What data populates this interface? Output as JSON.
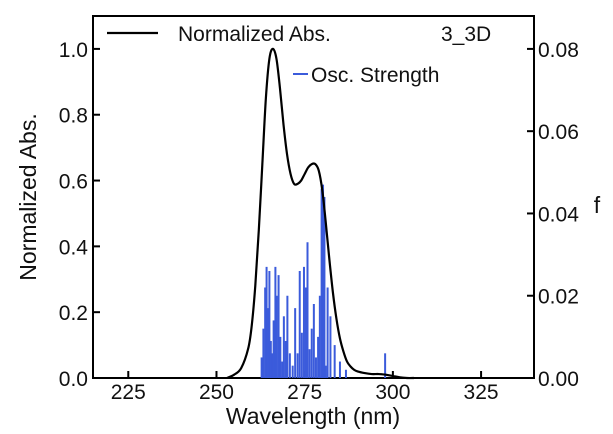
{
  "chart_data": {
    "type": "line",
    "annotation": "3_3D",
    "xlabel": "Wavelength (nm)",
    "ylabel": "Normalized Abs.",
    "y2label": "f",
    "xlim": [
      215,
      340
    ],
    "ylim": [
      0,
      1.1
    ],
    "y2lim": [
      0,
      0.088
    ],
    "xticks": [
      225,
      250,
      275,
      300,
      325
    ],
    "xtick_labels": [
      "225",
      "250",
      "275",
      "300",
      "325"
    ],
    "yticks": [
      0.0,
      0.2,
      0.4,
      0.6,
      0.8,
      1.0
    ],
    "ytick_labels": [
      "0.0",
      "0.2",
      "0.4",
      "0.6",
      "0.8",
      "1.0"
    ],
    "y2ticks": [
      0.0,
      0.02,
      0.04,
      0.06,
      0.08
    ],
    "y2tick_labels": [
      "0.00",
      "0.02",
      "0.04",
      "0.06",
      "0.08"
    ],
    "legend_position": "top",
    "series": [
      {
        "name": "Normalized Abs.",
        "axis": "left",
        "kind": "line",
        "color": "#000000",
        "x": [
          253,
          255,
          257,
          259,
          260,
          261,
          262,
          263,
          264,
          265,
          266,
          267,
          268,
          269,
          270,
          271,
          272,
          273,
          274,
          275,
          276,
          277,
          278,
          279,
          280,
          281,
          282,
          283,
          284,
          285,
          286,
          287,
          288,
          289,
          290,
          292,
          294,
          296,
          298,
          300,
          302,
          304,
          306
        ],
        "y": [
          0.0,
          0.01,
          0.03,
          0.09,
          0.16,
          0.28,
          0.45,
          0.65,
          0.85,
          0.97,
          1.0,
          0.97,
          0.88,
          0.77,
          0.68,
          0.62,
          0.59,
          0.59,
          0.6,
          0.62,
          0.64,
          0.65,
          0.65,
          0.63,
          0.57,
          0.47,
          0.36,
          0.26,
          0.18,
          0.12,
          0.08,
          0.05,
          0.035,
          0.025,
          0.02,
          0.015,
          0.012,
          0.012,
          0.01,
          0.006,
          0.002,
          0.0,
          0.0
        ]
      },
      {
        "name": "Osc. Strength",
        "axis": "right",
        "kind": "stick",
        "color": "#3b5bdb",
        "x": [
          262.8,
          263.3,
          263.8,
          264.2,
          264.6,
          265.0,
          265.4,
          265.8,
          266.2,
          266.7,
          267.1,
          267.6,
          268.1,
          268.6,
          269.1,
          269.6,
          270.1,
          270.8,
          271.6,
          272.3,
          273.0,
          273.6,
          274.2,
          274.8,
          275.3,
          275.8,
          276.4,
          277.0,
          277.6,
          278.2,
          278.8,
          279.3,
          279.8,
          280.2,
          280.6,
          281.0,
          281.5,
          282.3,
          283.5,
          285.0,
          286.7,
          297.8
        ],
        "y": [
          0.005,
          0.012,
          0.022,
          0.027,
          0.017,
          0.026,
          0.009,
          0.006,
          0.014,
          0.027,
          0.02,
          0.025,
          0.01,
          0.004,
          0.015,
          0.009,
          0.02,
          0.006,
          0.003,
          0.017,
          0.006,
          0.026,
          0.011,
          0.027,
          0.022,
          0.033,
          0.007,
          0.012,
          0.018,
          0.005,
          0.01,
          0.02,
          0.046,
          0.047,
          0.044,
          0.003,
          0.022,
          0.015,
          0.008,
          0.004,
          0.002,
          0.006
        ]
      }
    ]
  }
}
